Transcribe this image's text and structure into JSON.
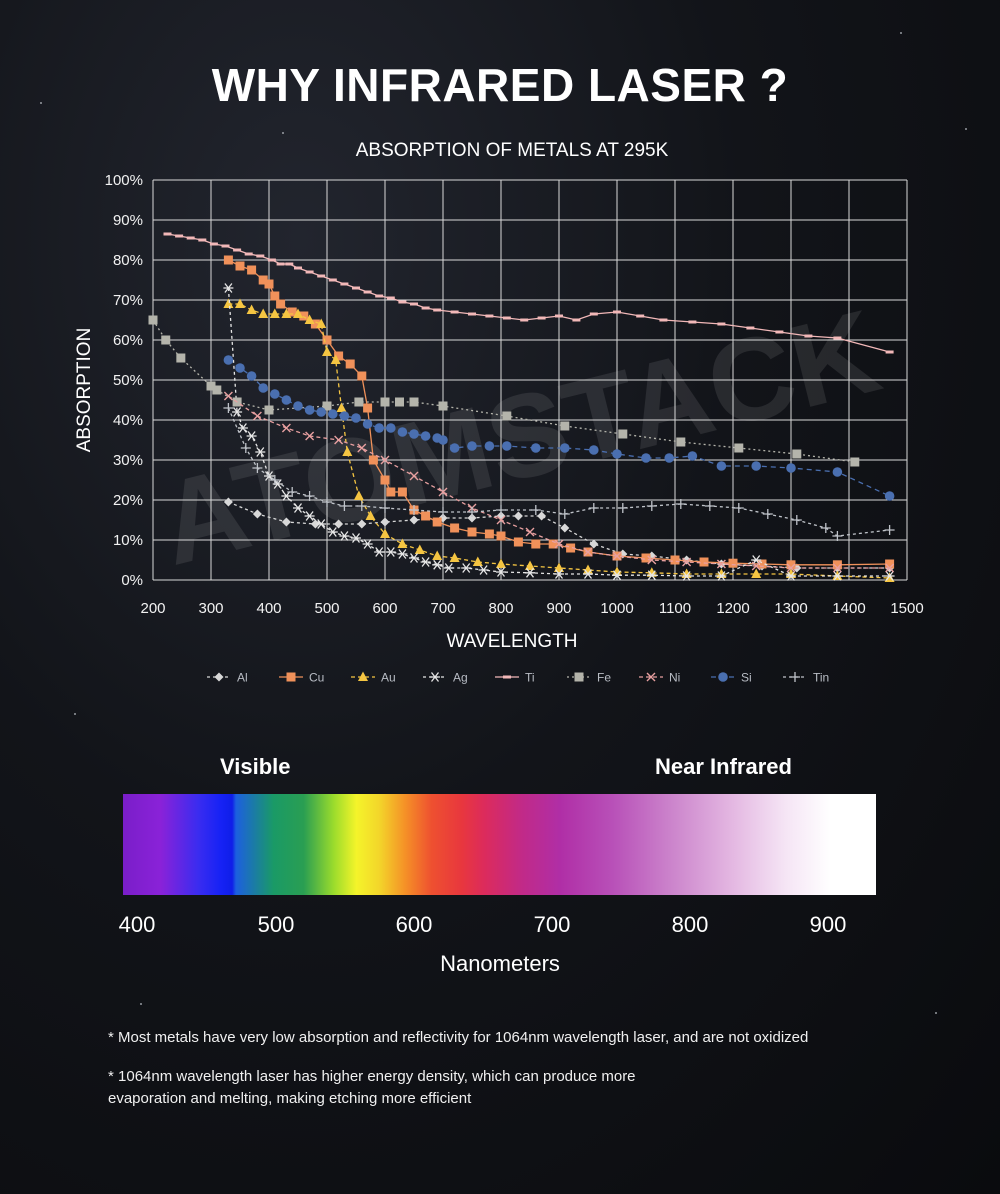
{
  "title": "WHY INFRARED LASER ?",
  "colors": {
    "Al": "#d8d8d8",
    "Cu": "#f0915a",
    "Au": "#f5c542",
    "Ag": "#e6e6e6",
    "Ti": "#f2b8b8",
    "Fe": "#b4b4ab",
    "Ni": "#e8a0a0",
    "Si": "#4a6fb0",
    "Tin": "#bfc3c9"
  },
  "chart_data": {
    "type": "line",
    "title": "ABSORPTION OF METALS AT 295K",
    "xlabel": "WAVELENGTH",
    "ylabel": "ABSORPTION",
    "xlim": [
      200,
      1500
    ],
    "ylim": [
      0,
      100
    ],
    "x_ticks": [
      "200",
      "300",
      "400",
      "500",
      "600",
      "700",
      "800",
      "900",
      "1000",
      "1100",
      "1200",
      "1300",
      "1400",
      "1500"
    ],
    "y_ticks": [
      "0%",
      "10%",
      "20%",
      "30%",
      "40%",
      "50%",
      "60%",
      "70%",
      "80%",
      "90%",
      "100%"
    ],
    "grid": true,
    "legend_position": "bottom",
    "watermark": "ATOMSTACK",
    "series": [
      {
        "name": "Al",
        "marker": "diamond",
        "dash": "3,3",
        "points": [
          [
            330,
            19.5
          ],
          [
            380,
            16.5
          ],
          [
            430,
            14.5
          ],
          [
            480,
            14
          ],
          [
            520,
            14
          ],
          [
            560,
            14
          ],
          [
            600,
            14.5
          ],
          [
            650,
            15
          ],
          [
            700,
            15.5
          ],
          [
            750,
            15.5
          ],
          [
            800,
            16
          ],
          [
            830,
            16
          ],
          [
            870,
            16
          ],
          [
            910,
            13
          ],
          [
            960,
            9
          ],
          [
            1010,
            6.5
          ],
          [
            1060,
            6
          ],
          [
            1120,
            5
          ],
          [
            1180,
            4
          ],
          [
            1250,
            3.5
          ],
          [
            1310,
            3
          ],
          [
            1380,
            3
          ],
          [
            1470,
            3
          ]
        ]
      },
      {
        "name": "Cu",
        "marker": "square",
        "dash": "",
        "points": [
          [
            330,
            80
          ],
          [
            350,
            78.5
          ],
          [
            370,
            77.5
          ],
          [
            390,
            75
          ],
          [
            400,
            74
          ],
          [
            410,
            71
          ],
          [
            420,
            69
          ],
          [
            440,
            67
          ],
          [
            460,
            66
          ],
          [
            480,
            64
          ],
          [
            500,
            60
          ],
          [
            520,
            56
          ],
          [
            540,
            54
          ],
          [
            560,
            51
          ],
          [
            570,
            43
          ],
          [
            580,
            30
          ],
          [
            600,
            25
          ],
          [
            610,
            22
          ],
          [
            630,
            22
          ],
          [
            650,
            17.5
          ],
          [
            670,
            16
          ],
          [
            690,
            14.5
          ],
          [
            720,
            13
          ],
          [
            750,
            12
          ],
          [
            780,
            11.5
          ],
          [
            800,
            11
          ],
          [
            830,
            9.5
          ],
          [
            860,
            9
          ],
          [
            890,
            9
          ],
          [
            920,
            8
          ],
          [
            950,
            7
          ],
          [
            1000,
            6
          ],
          [
            1050,
            5.5
          ],
          [
            1100,
            5
          ],
          [
            1150,
            4.5
          ],
          [
            1200,
            4.2
          ],
          [
            1250,
            4
          ],
          [
            1300,
            3.8
          ],
          [
            1380,
            3.8
          ],
          [
            1470,
            4
          ]
        ]
      },
      {
        "name": "Au",
        "marker": "triangle",
        "dash": "4,3",
        "points": [
          [
            330,
            69
          ],
          [
            350,
            69
          ],
          [
            370,
            67.5
          ],
          [
            390,
            66.5
          ],
          [
            410,
            66.5
          ],
          [
            430,
            66.5
          ],
          [
            450,
            66.5
          ],
          [
            470,
            65
          ],
          [
            490,
            64
          ],
          [
            500,
            57
          ],
          [
            515,
            55
          ],
          [
            525,
            43
          ],
          [
            535,
            32
          ],
          [
            555,
            21
          ],
          [
            575,
            16
          ],
          [
            600,
            11.5
          ],
          [
            630,
            9
          ],
          [
            660,
            7.5
          ],
          [
            690,
            6
          ],
          [
            720,
            5.5
          ],
          [
            760,
            4.5
          ],
          [
            800,
            4
          ],
          [
            850,
            3.5
          ],
          [
            900,
            3
          ],
          [
            950,
            2.5
          ],
          [
            1000,
            2
          ],
          [
            1060,
            1.8
          ],
          [
            1120,
            1.5
          ],
          [
            1180,
            1.5
          ],
          [
            1240,
            1.5
          ],
          [
            1300,
            1.5
          ],
          [
            1380,
            1
          ],
          [
            1470,
            0.5
          ]
        ]
      },
      {
        "name": "Ag",
        "marker": "star",
        "dash": "3,3",
        "points": [
          [
            330,
            73
          ],
          [
            345,
            42
          ],
          [
            355,
            38
          ],
          [
            370,
            36
          ],
          [
            385,
            32
          ],
          [
            400,
            26
          ],
          [
            415,
            24
          ],
          [
            430,
            21
          ],
          [
            450,
            18
          ],
          [
            470,
            16
          ],
          [
            490,
            14
          ],
          [
            510,
            12
          ],
          [
            530,
            11
          ],
          [
            550,
            10.5
          ],
          [
            570,
            9
          ],
          [
            590,
            7
          ],
          [
            610,
            7
          ],
          [
            630,
            6.5
          ],
          [
            650,
            5.5
          ],
          [
            670,
            4.5
          ],
          [
            690,
            3.8
          ],
          [
            710,
            3
          ],
          [
            740,
            3
          ],
          [
            770,
            2.5
          ],
          [
            800,
            2
          ],
          [
            850,
            1.8
          ],
          [
            900,
            1.5
          ],
          [
            950,
            1.5
          ],
          [
            1000,
            1.2
          ],
          [
            1060,
            1.2
          ],
          [
            1120,
            1
          ],
          [
            1180,
            1
          ],
          [
            1240,
            5
          ],
          [
            1300,
            1
          ],
          [
            1380,
            1
          ],
          [
            1470,
            1
          ]
        ]
      },
      {
        "name": "Ti",
        "marker": "dash",
        "dash": "",
        "points": [
          [
            225,
            86.5
          ],
          [
            245,
            86
          ],
          [
            265,
            85.5
          ],
          [
            285,
            85
          ],
          [
            305,
            84
          ],
          [
            325,
            83.5
          ],
          [
            345,
            82.5
          ],
          [
            365,
            81.5
          ],
          [
            385,
            81
          ],
          [
            405,
            80
          ],
          [
            420,
            79
          ],
          [
            435,
            79
          ],
          [
            450,
            78
          ],
          [
            470,
            77
          ],
          [
            490,
            76
          ],
          [
            510,
            75
          ],
          [
            530,
            74
          ],
          [
            550,
            73
          ],
          [
            570,
            72
          ],
          [
            590,
            71
          ],
          [
            610,
            70.5
          ],
          [
            630,
            69.5
          ],
          [
            650,
            69
          ],
          [
            670,
            68
          ],
          [
            690,
            67.5
          ],
          [
            720,
            67
          ],
          [
            750,
            66.5
          ],
          [
            780,
            66
          ],
          [
            810,
            65.5
          ],
          [
            840,
            65
          ],
          [
            870,
            65.5
          ],
          [
            900,
            66
          ],
          [
            930,
            65
          ],
          [
            960,
            66.5
          ],
          [
            1000,
            67
          ],
          [
            1040,
            66
          ],
          [
            1080,
            65
          ],
          [
            1130,
            64.5
          ],
          [
            1180,
            64
          ],
          [
            1230,
            63
          ],
          [
            1280,
            62
          ],
          [
            1330,
            61
          ],
          [
            1380,
            60.5
          ],
          [
            1470,
            57
          ]
        ]
      },
      {
        "name": "Fe",
        "marker": "square",
        "dash": "2,3",
        "points": [
          [
            200,
            65
          ],
          [
            222,
            60
          ],
          [
            248,
            55.5
          ],
          [
            300,
            48.5
          ],
          [
            310,
            47.5
          ],
          [
            345,
            44.5
          ],
          [
            400,
            42.5
          ],
          [
            500,
            43.5
          ],
          [
            555,
            44.5
          ],
          [
            600,
            44.5
          ],
          [
            625,
            44.5
          ],
          [
            650,
            44.5
          ],
          [
            700,
            43.5
          ],
          [
            810,
            41
          ],
          [
            910,
            38.5
          ],
          [
            1010,
            36.5
          ],
          [
            1110,
            34.5
          ],
          [
            1210,
            33
          ],
          [
            1310,
            31.5
          ],
          [
            1410,
            29.5
          ]
        ]
      },
      {
        "name": "Ni",
        "marker": "x",
        "dash": "4,3",
        "points": [
          [
            330,
            46
          ],
          [
            380,
            41
          ],
          [
            430,
            38
          ],
          [
            470,
            36
          ],
          [
            520,
            35
          ],
          [
            560,
            33
          ],
          [
            600,
            30
          ],
          [
            650,
            26
          ],
          [
            700,
            22
          ],
          [
            750,
            18
          ],
          [
            800,
            15
          ],
          [
            850,
            12
          ],
          [
            900,
            9
          ],
          [
            950,
            7
          ],
          [
            1000,
            6
          ],
          [
            1060,
            5
          ],
          [
            1120,
            4.5
          ],
          [
            1180,
            4
          ],
          [
            1240,
            3.5
          ],
          [
            1300,
            3
          ],
          [
            1380,
            3
          ],
          [
            1470,
            3
          ]
        ]
      },
      {
        "name": "Si",
        "marker": "circle",
        "dash": "5,4",
        "points": [
          [
            330,
            55
          ],
          [
            350,
            53
          ],
          [
            370,
            51
          ],
          [
            390,
            48
          ],
          [
            410,
            46.5
          ],
          [
            430,
            45
          ],
          [
            450,
            43.5
          ],
          [
            470,
            42.5
          ],
          [
            490,
            42
          ],
          [
            510,
            41.5
          ],
          [
            530,
            41
          ],
          [
            550,
            40.5
          ],
          [
            570,
            39
          ],
          [
            590,
            38
          ],
          [
            610,
            38
          ],
          [
            630,
            37
          ],
          [
            650,
            36.5
          ],
          [
            670,
            36
          ],
          [
            690,
            35.5
          ],
          [
            700,
            35
          ],
          [
            720,
            33
          ],
          [
            750,
            33.5
          ],
          [
            780,
            33.5
          ],
          [
            810,
            33.5
          ],
          [
            860,
            33
          ],
          [
            910,
            33
          ],
          [
            960,
            32.5
          ],
          [
            1000,
            31.5
          ],
          [
            1050,
            30.5
          ],
          [
            1090,
            30.5
          ],
          [
            1130,
            31
          ],
          [
            1180,
            28.5
          ],
          [
            1240,
            28.5
          ],
          [
            1300,
            28
          ],
          [
            1380,
            27
          ],
          [
            1470,
            21
          ]
        ]
      },
      {
        "name": "Tin",
        "marker": "plus",
        "dash": "3,3",
        "points": [
          [
            330,
            43
          ],
          [
            360,
            33
          ],
          [
            380,
            28
          ],
          [
            410,
            25
          ],
          [
            440,
            22
          ],
          [
            470,
            21
          ],
          [
            500,
            19.5
          ],
          [
            530,
            18.5
          ],
          [
            560,
            18.5
          ],
          [
            600,
            18
          ],
          [
            650,
            17.5
          ],
          [
            700,
            17
          ],
          [
            750,
            17
          ],
          [
            800,
            17.5
          ],
          [
            860,
            17.5
          ],
          [
            910,
            16.5
          ],
          [
            960,
            18
          ],
          [
            1010,
            18
          ],
          [
            1060,
            18.5
          ],
          [
            1110,
            19
          ],
          [
            1160,
            18.5
          ],
          [
            1210,
            18
          ],
          [
            1260,
            16.5
          ],
          [
            1310,
            15
          ],
          [
            1360,
            13
          ],
          [
            1380,
            11
          ],
          [
            1470,
            12.5
          ]
        ]
      }
    ]
  },
  "spectrum": {
    "label_left": "Visible",
    "label_right": "Near Infrared",
    "ticks": [
      "400",
      "500",
      "600",
      "700",
      "800",
      "900"
    ],
    "unit_label": "Nanometers"
  },
  "notes": [
    "* Most metals have very low absorption and reflectivity for 1064nm wavelength laser, and are not oxidized",
    "* 1064nm wavelength laser has higher energy density, which can produce more",
    "evaporation and melting, making etching more efficient"
  ]
}
